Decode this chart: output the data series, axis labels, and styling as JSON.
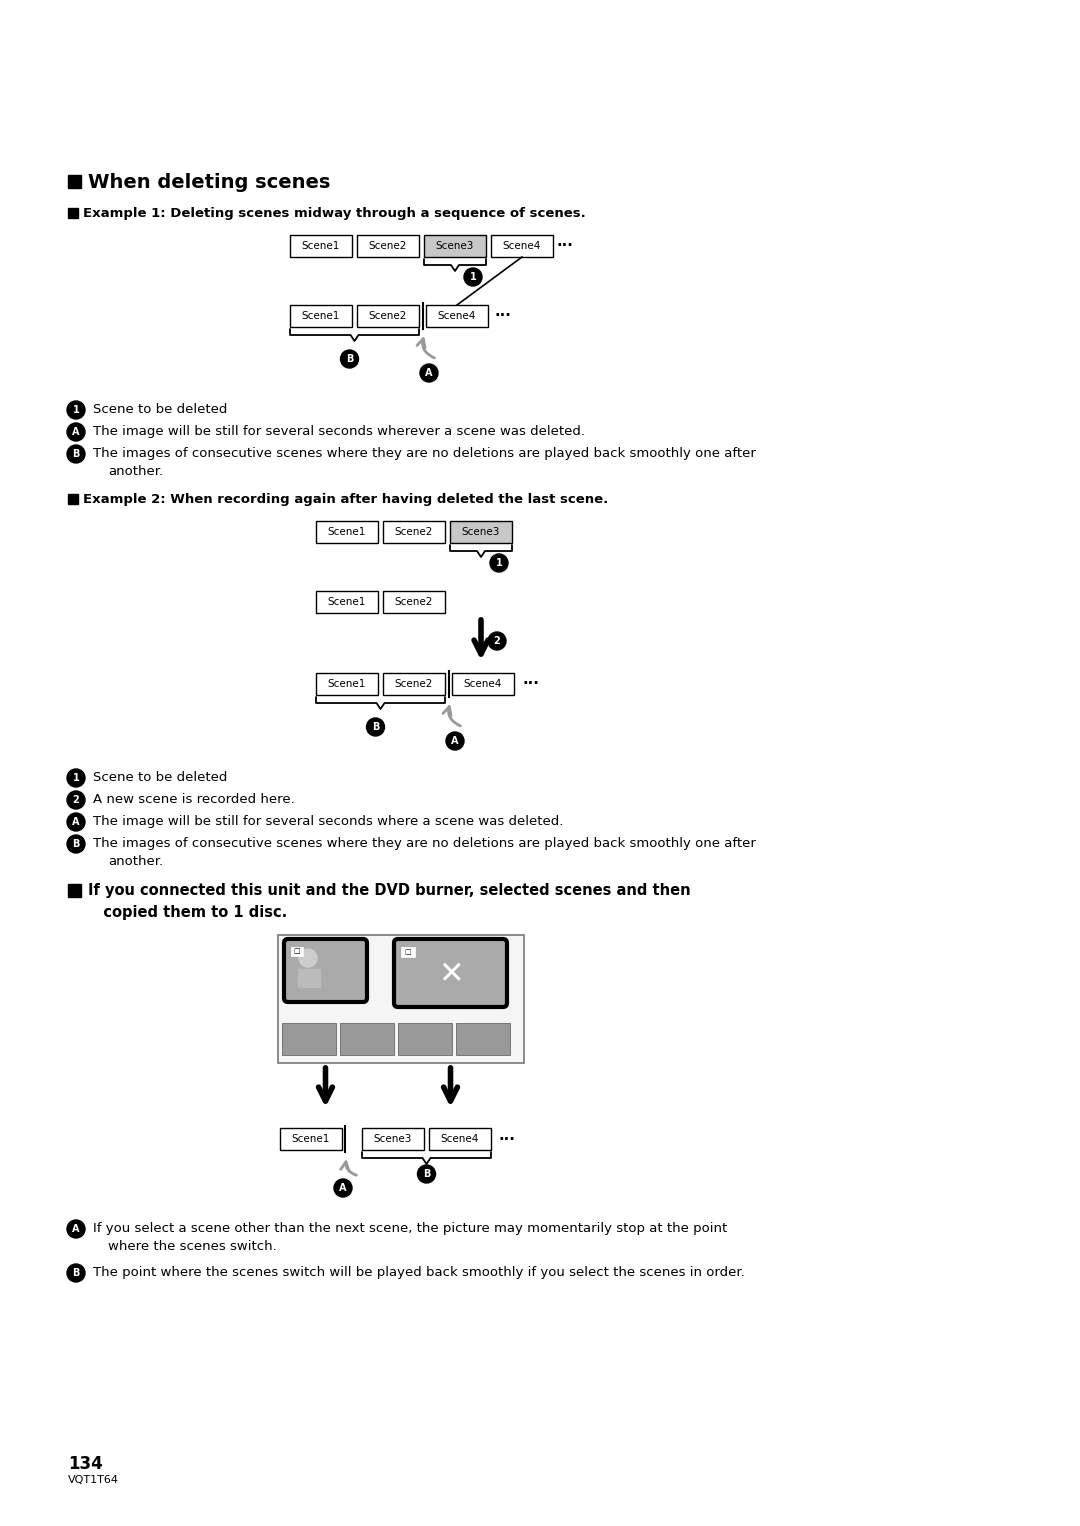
{
  "bg_color": "#ffffff",
  "title": "When deleting scenes",
  "page_number": "134",
  "page_code": "VQT1T64"
}
